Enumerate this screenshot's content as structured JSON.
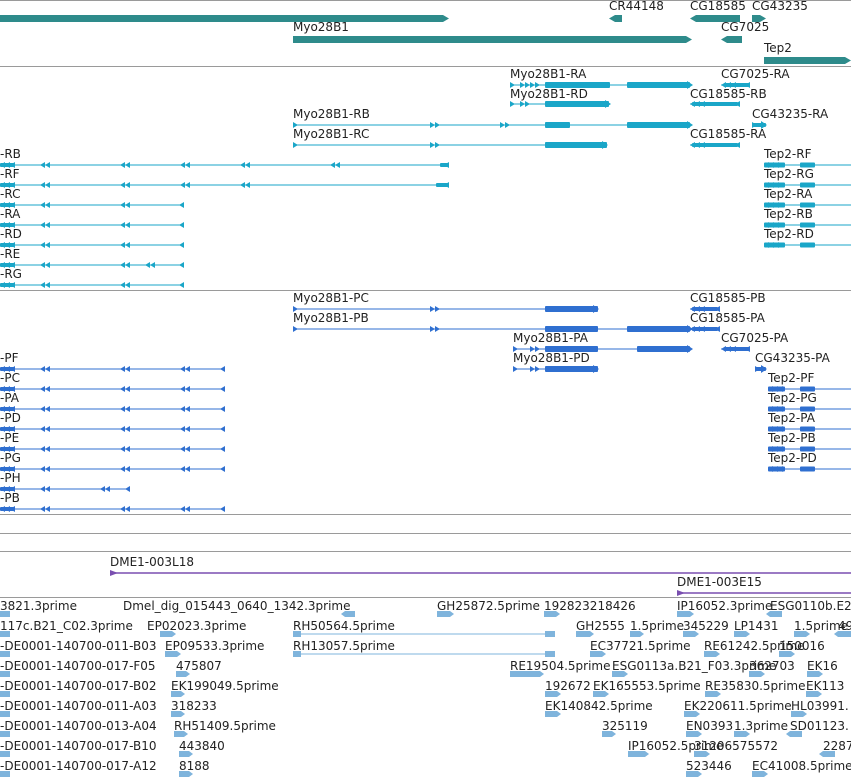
{
  "colors": {
    "gene": "#2e8b8b",
    "transcript_cyan": "#1aa6c8",
    "transcript_blue": "#2f6fd0",
    "clone": "#7a4fb0",
    "est": "#7fb4dc",
    "separator": "#9a9a9a"
  },
  "genes": [
    {
      "label": ""
    },
    {
      "label": "CR44148"
    },
    {
      "label": "CG18585"
    },
    {
      "label": "CG43235"
    },
    {
      "label": "Myo28B1"
    },
    {
      "label": "CG7025"
    },
    {
      "label": "Tep2"
    }
  ],
  "transcripts_a": [
    {
      "label": "Myo28B1-RA"
    },
    {
      "label": "CG7025-RA"
    },
    {
      "label": "Myo28B1-RD"
    },
    {
      "label": "CG18585-RB"
    },
    {
      "label": "Myo28B1-RB"
    },
    {
      "label": "CG43235-RA"
    },
    {
      "label": "Myo28B1-RC"
    },
    {
      "label": "CG18585-RA"
    },
    {
      "label": "-RB"
    },
    {
      "label": "Tep2-RF"
    },
    {
      "label": "-RF"
    },
    {
      "label": "Tep2-RG"
    },
    {
      "label": "-RC"
    },
    {
      "label": "Tep2-RA"
    },
    {
      "label": "-RA"
    },
    {
      "label": "Tep2-RB"
    },
    {
      "label": "-RD"
    },
    {
      "label": "Tep2-RD"
    },
    {
      "label": "-RE"
    },
    {
      "label": "-RG"
    }
  ],
  "transcripts_b": [
    {
      "label": "Myo28B1-PC"
    },
    {
      "label": "CG18585-PB"
    },
    {
      "label": "Myo28B1-PB"
    },
    {
      "label": "CG18585-PA"
    },
    {
      "label": "Myo28B1-PA"
    },
    {
      "label": "CG7025-PA"
    },
    {
      "label": "-PF"
    },
    {
      "label": "Myo28B1-PD"
    },
    {
      "label": "CG43235-PA"
    },
    {
      "label": "-PC"
    },
    {
      "label": "Tep2-PF"
    },
    {
      "label": "-PA"
    },
    {
      "label": "Tep2-PG"
    },
    {
      "label": "-PD"
    },
    {
      "label": "Tep2-PA"
    },
    {
      "label": "-PE"
    },
    {
      "label": "Tep2-PB"
    },
    {
      "label": "-PG"
    },
    {
      "label": "Tep2-PD"
    },
    {
      "label": "-PH"
    },
    {
      "label": "-PB"
    }
  ],
  "clones": [
    {
      "label": "DME1-003L18"
    },
    {
      "label": "DME1-003E15"
    }
  ],
  "ests": [
    {
      "label": "3821.3prime"
    },
    {
      "label": "Dmel_dig_015443_0640_1342.3prime"
    },
    {
      "label": "GH25872.5prime"
    },
    {
      "label": "192823218426"
    },
    {
      "label": "IP16052.3prime"
    },
    {
      "label": "ESG0110b.E2"
    },
    {
      "label": "117c.B21_C02.3prime"
    },
    {
      "label": "EP02023.3prime"
    },
    {
      "label": "RH50564.5prime"
    },
    {
      "label": "GH2555"
    },
    {
      "label": "1.5prime"
    },
    {
      "label": "345229"
    },
    {
      "label": "LP1431"
    },
    {
      "label": "1.5prime"
    },
    {
      "label": "49"
    },
    {
      "label": "-DE0001-140700-011-B03"
    },
    {
      "label": "EP09533.3prime"
    },
    {
      "label": "RH13057.5prime"
    },
    {
      "label": "EC37721.5prime"
    },
    {
      "label": "RE61242.5prime"
    },
    {
      "label": "150016"
    },
    {
      "label": "-DE0001-140700-017-F05"
    },
    {
      "label": "475807"
    },
    {
      "label": "RE19504.5prime"
    },
    {
      "label": "ESG0113a.B21_F03.3prime"
    },
    {
      "label": "362703"
    },
    {
      "label": "EK16"
    },
    {
      "label": "-DE0001-140700-017-B02"
    },
    {
      "label": "EK199049.5prime"
    },
    {
      "label": "192672"
    },
    {
      "label": "EK165553.5prime"
    },
    {
      "label": "RE35830.5prime"
    },
    {
      "label": "EK113"
    },
    {
      "label": "-DE0001-140700-011-A03"
    },
    {
      "label": "318233"
    },
    {
      "label": "EK140842.5prime"
    },
    {
      "label": "EK220611.5prime"
    },
    {
      "label": "HL03991."
    },
    {
      "label": "-DE0001-140700-013-A04"
    },
    {
      "label": "RH51409.5prime"
    },
    {
      "label": "325119"
    },
    {
      "label": "EN0393"
    },
    {
      "label": "1.3prime"
    },
    {
      "label": "SD01123."
    },
    {
      "label": "-DE0001-140700-017-B10"
    },
    {
      "label": "443840"
    },
    {
      "label": "IP16052.5prime"
    },
    {
      "label": "31206575572"
    },
    {
      "label": "2287"
    },
    {
      "label": "-DE0001-140700-017-A12"
    },
    {
      "label": "8188"
    },
    {
      "label": "523446"
    },
    {
      "label": "EC41008.5prime"
    }
  ]
}
